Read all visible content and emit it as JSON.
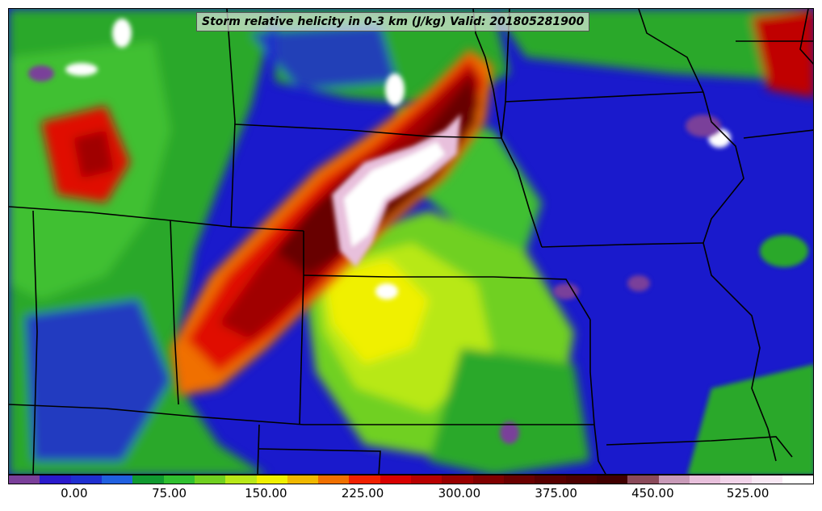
{
  "title": "Storm relative helicity in 0-3 km (J/kg) Valid: 201805281900",
  "colorbar": {
    "colors": [
      "#7a3f9a",
      "#2a1acc",
      "#1f2fd0",
      "#2060e0",
      "#109a30",
      "#30c030",
      "#70d020",
      "#b8e818",
      "#f0f000",
      "#f0b800",
      "#f07000",
      "#f02000",
      "#d80000",
      "#b80000",
      "#980000",
      "#800000",
      "#6a0000",
      "#580000",
      "#4c0000",
      "#400000",
      "#8a4a5a",
      "#c89ab8",
      "#e8c0dc",
      "#f2d4ea",
      "#f8e8f4",
      "#ffffff"
    ],
    "labels": [
      "0.00",
      "75.00",
      "150.00",
      "225.00",
      "300.00",
      "375.00",
      "450.00",
      "525.00"
    ],
    "label_fractions": [
      0.082,
      0.2,
      0.32,
      0.44,
      0.56,
      0.68,
      0.8,
      0.918
    ]
  },
  "colors": {
    "background": "#1a1acc",
    "boundary": "#000000"
  }
}
